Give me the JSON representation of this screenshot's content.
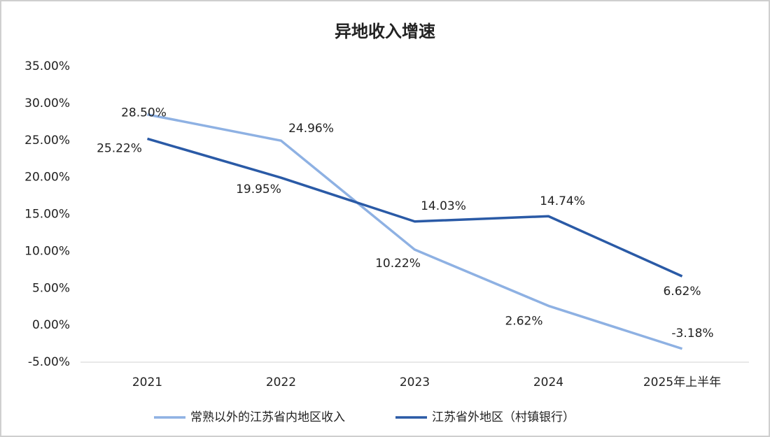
{
  "chart_data": {
    "type": "line",
    "title": "异地收入增速",
    "categories": [
      "2021",
      "2022",
      "2023",
      "2024",
      "2025年上半年"
    ],
    "series": [
      {
        "name": "常熟以外的江苏省内地区收入",
        "color": "#8eb1e3",
        "values": [
          28.5,
          24.96,
          10.22,
          2.62,
          -3.18
        ],
        "value_labels": [
          "28.50%",
          "24.96%",
          "10.22%",
          "2.62%",
          "-3.18%"
        ]
      },
      {
        "name": "江苏省外地区（村镇银行）",
        "color": "#2a5aa6",
        "values": [
          25.22,
          19.95,
          14.03,
          14.74,
          6.62
        ],
        "value_labels": [
          "25.22%",
          "19.95%",
          "14.03%",
          "14.74%",
          "6.62%"
        ]
      }
    ],
    "ylim": [
      -5,
      35
    ],
    "yticks": [
      {
        "value": -5,
        "label": "-5.00%"
      },
      {
        "value": 0,
        "label": "0.00%"
      },
      {
        "value": 5,
        "label": "5.00%"
      },
      {
        "value": 10,
        "label": "10.00%"
      },
      {
        "value": 15,
        "label": "15.00%"
      },
      {
        "value": 20,
        "label": "20.00%"
      },
      {
        "value": 25,
        "label": "25.00%"
      },
      {
        "value": 30,
        "label": "30.00%"
      },
      {
        "value": 35,
        "label": "35.00%"
      }
    ],
    "grid": false,
    "legend": "bottom"
  }
}
